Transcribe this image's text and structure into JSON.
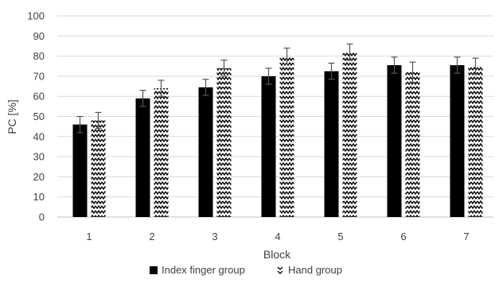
{
  "chart_data": {
    "type": "bar",
    "title": "",
    "xlabel": "Block",
    "ylabel": "PC [%]",
    "ylim": [
      0,
      100
    ],
    "ytick_step": 10,
    "grid": true,
    "legend_position": "bottom-center",
    "categories": [
      "1",
      "2",
      "3",
      "4",
      "5",
      "6",
      "7"
    ],
    "series": [
      {
        "name": "Index finger group",
        "pattern": "solid",
        "color": "#000000",
        "values": [
          46,
          59,
          64.5,
          70,
          72.5,
          75.5,
          75.5
        ],
        "errors": [
          4,
          4,
          4,
          4,
          4,
          4,
          4
        ]
      },
      {
        "name": "Hand group",
        "pattern": "zigzag",
        "color": "#000000",
        "values": [
          48,
          64,
          74,
          80,
          82,
          72,
          75
        ],
        "errors": [
          4,
          4,
          4,
          4,
          4,
          5,
          4
        ]
      }
    ],
    "grid_color": "#d9d9d9",
    "error_bar_color": "#555555"
  }
}
